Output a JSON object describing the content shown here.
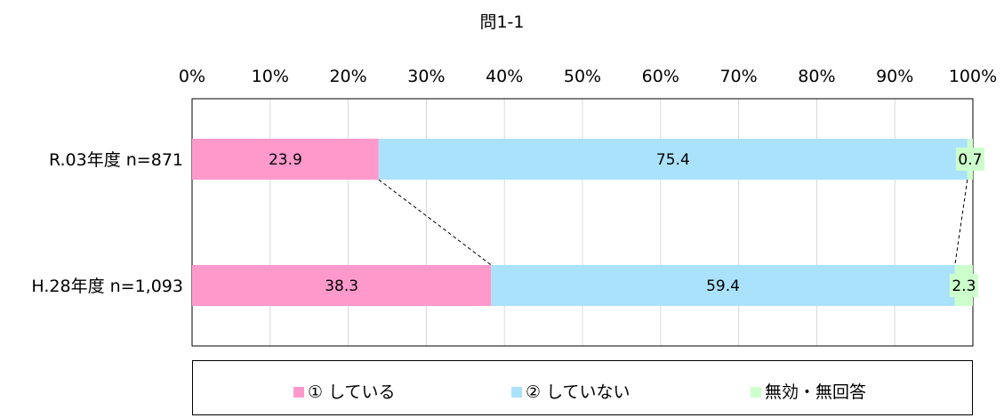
{
  "colors": {
    "series_1": "#ff99cc",
    "series_2": "#aae2fc",
    "series_3": "#ccffcc"
  },
  "chart_data": {
    "type": "bar",
    "orientation": "horizontal",
    "stacked": "100%",
    "title": "問1-1",
    "categories": [
      "R.03年度 n=871",
      "H.28年度 n=1,093"
    ],
    "series": [
      {
        "name": "① している",
        "values": [
          23.9,
          38.3
        ]
      },
      {
        "name": "② していない",
        "values": [
          75.4,
          59.4
        ]
      },
      {
        "name": "無効・無回答",
        "values": [
          0.7,
          2.3
        ]
      }
    ],
    "x_ticks": [
      "0%",
      "10%",
      "20%",
      "30%",
      "40%",
      "50%",
      "60%",
      "70%",
      "80%",
      "90%",
      "100%"
    ],
    "xlim": [
      0,
      100
    ],
    "grid": true,
    "legend_position": "bottom",
    "series_connector_lines": true
  }
}
